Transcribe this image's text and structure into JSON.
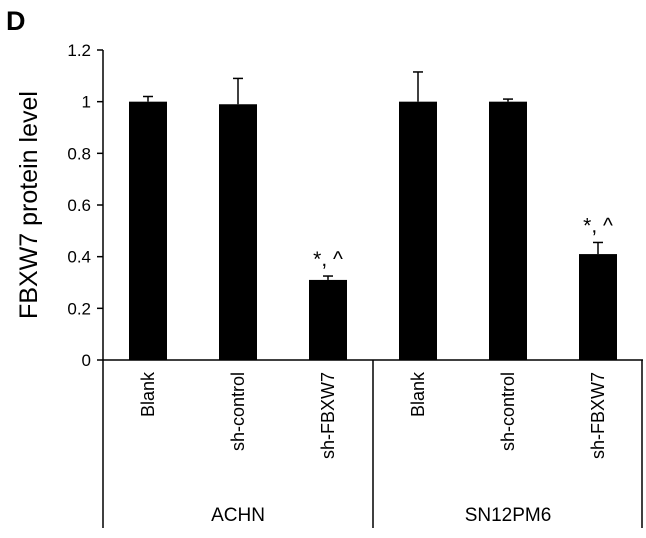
{
  "panel_label": "D",
  "chart_data": {
    "type": "bar",
    "title": "",
    "xlabel": "",
    "ylabel": "FBXW7 protein level",
    "ylim": [
      0,
      1.2
    ],
    "yticks": [
      "0",
      "0.2",
      "0.4",
      "0.6",
      "0.8",
      "1",
      "1.2"
    ],
    "grid": false,
    "legend": "none",
    "bar_color": "#000000",
    "groups": [
      {
        "name": "ACHN",
        "categories": [
          "Blank",
          "sh-control",
          "sh-FBXW7"
        ],
        "values": [
          1.0,
          0.99,
          0.31
        ],
        "errors": [
          0.02,
          0.1,
          0.015
        ],
        "annotations": [
          "",
          "",
          "*, ^"
        ]
      },
      {
        "name": "SN12PM6",
        "categories": [
          "Blank",
          "sh-control",
          "sh-FBXW7"
        ],
        "values": [
          1.0,
          1.0,
          0.41
        ],
        "errors": [
          0.115,
          0.01,
          0.045
        ],
        "annotations": [
          "",
          "",
          "*, ^"
        ]
      }
    ]
  }
}
